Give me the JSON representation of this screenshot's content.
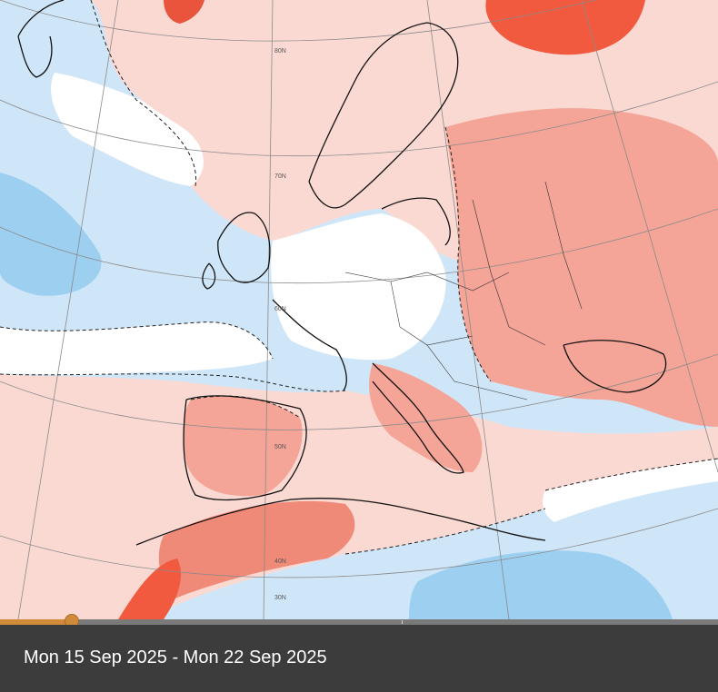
{
  "map": {
    "colors": {
      "ocean_cold": "#b9dcf5",
      "ocean_cold_light": "#dcedfa",
      "ocean_cold_strong": "#8ec7ee",
      "neutral": "#ffffff",
      "warm_light": "#fbd9d3",
      "warm": "#f4a597",
      "warm_strong": "#f08a78",
      "hot": "#f15a3e",
      "coastline": "#111111",
      "graticule": "#8a8a8a"
    },
    "graticule_labels": [
      "80N",
      "70N",
      "60N",
      "50N",
      "40N",
      "30N"
    ]
  },
  "timeline": {
    "progress": 0.1
  },
  "caption": {
    "date_range": "Mon 15 Sep 2025 - Mon 22 Sep 2025"
  }
}
